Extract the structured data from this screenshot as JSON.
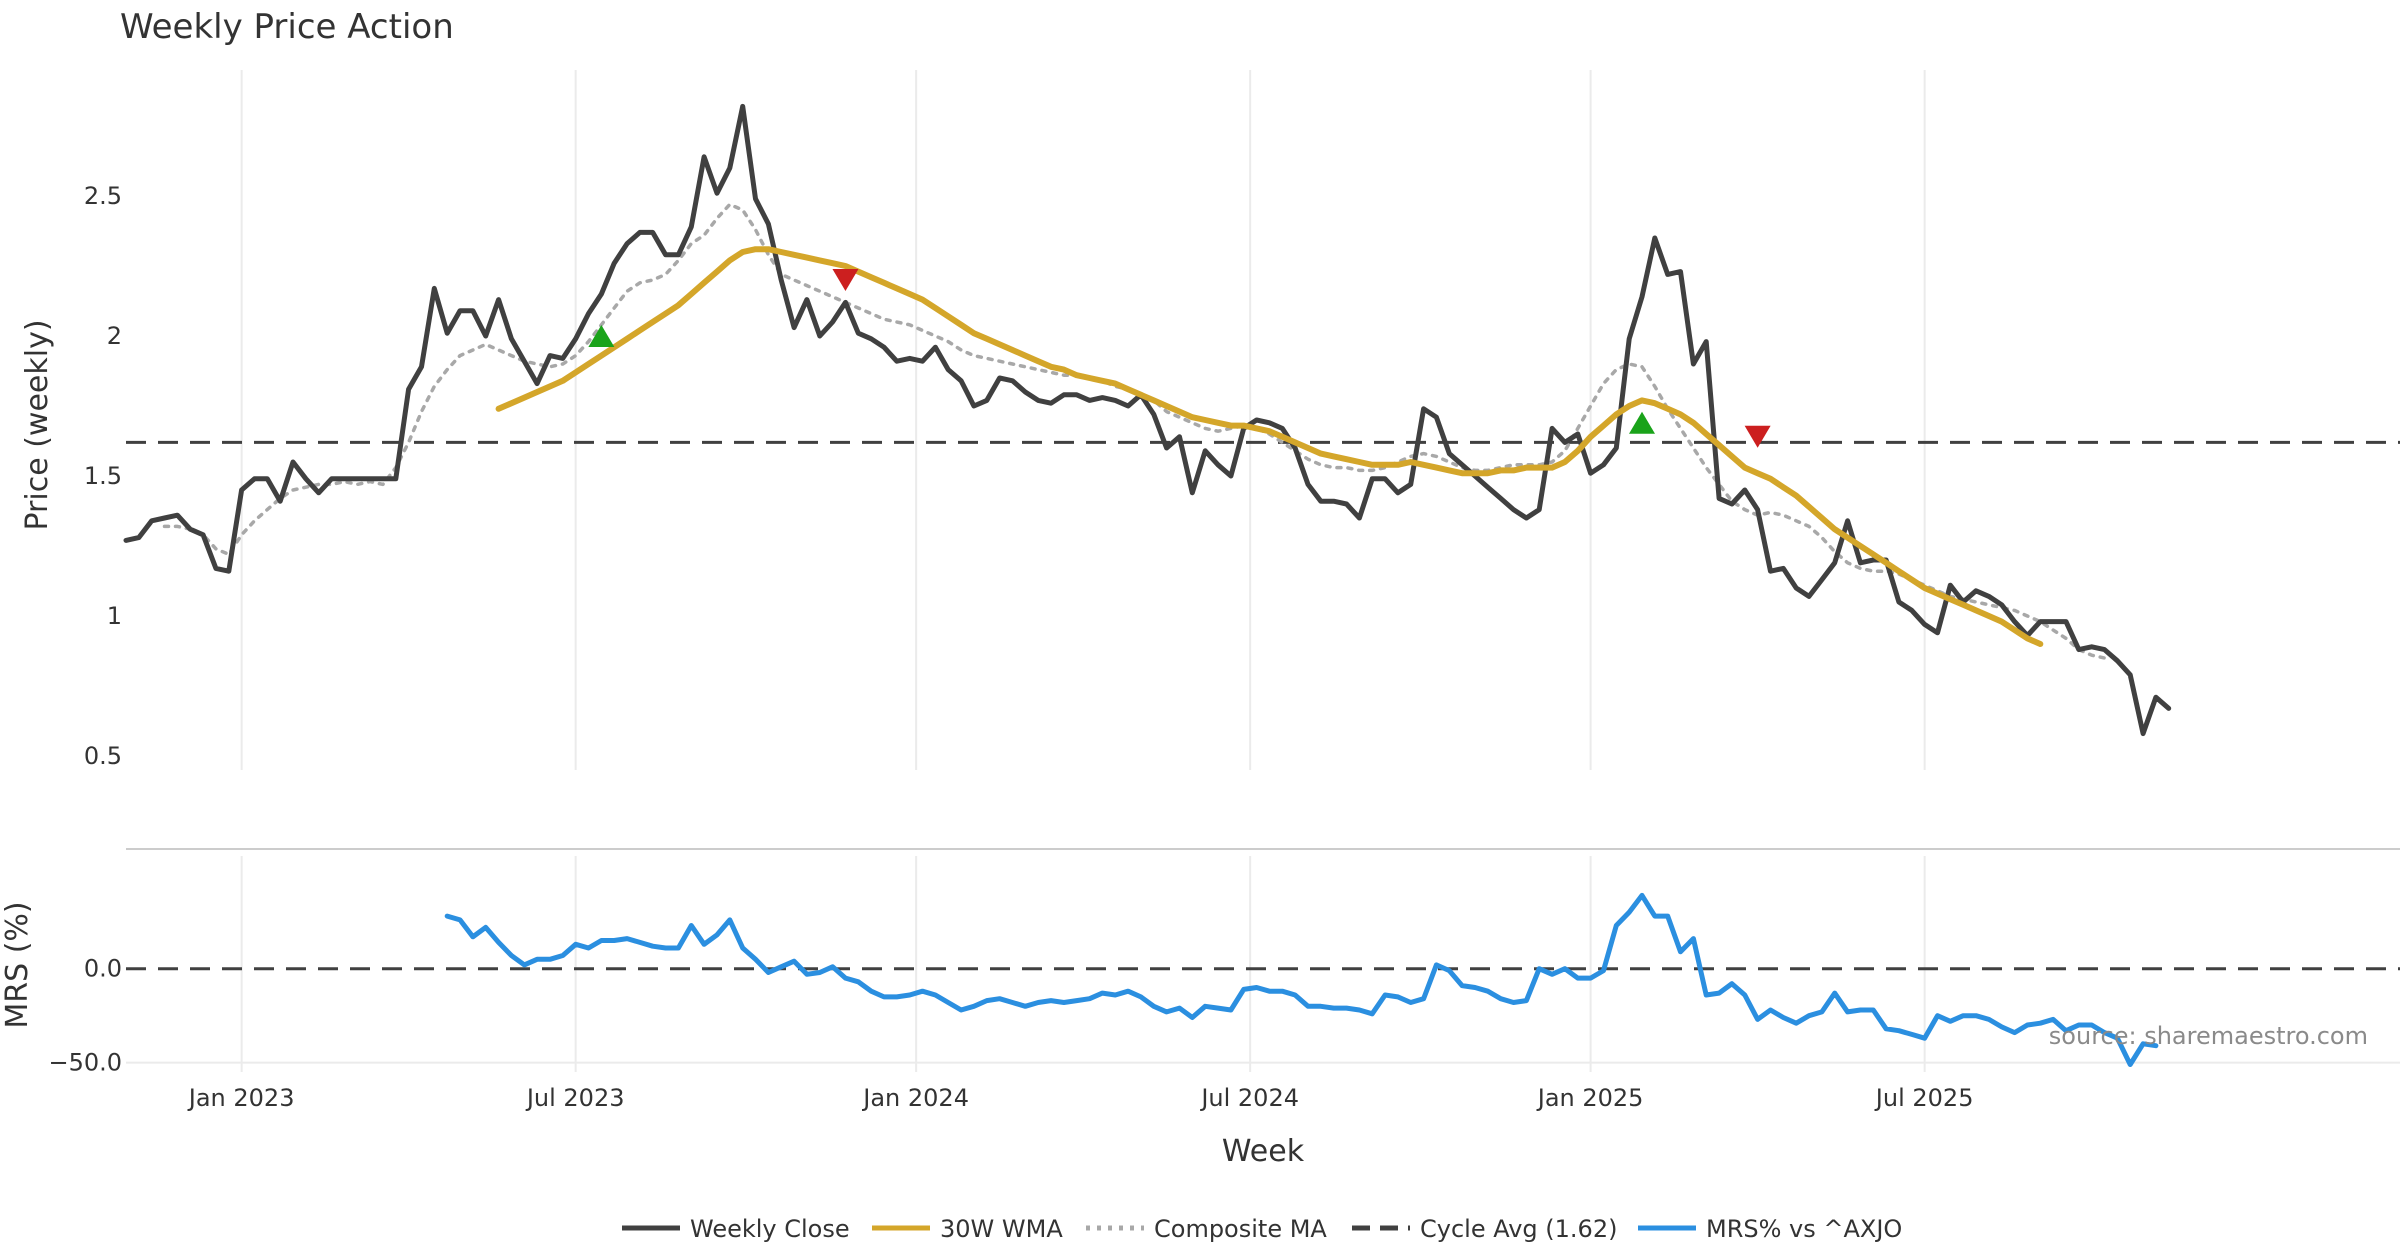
{
  "chart_data": [
    {
      "type": "line",
      "title": "Weekly Price Action",
      "xlabel": "Week",
      "ylabel": "Price (weekly)",
      "ylim": [
        0.45,
        2.95
      ],
      "yticks": [
        {
          "value": 0.5,
          "label": "0.5"
        },
        {
          "value": 1.0,
          "label": "1"
        },
        {
          "value": 1.5,
          "label": "1.5"
        },
        {
          "value": 2.0,
          "label": "2"
        },
        {
          "value": 2.5,
          "label": "2.5"
        }
      ],
      "x_weeks_start": 0,
      "xticks": [
        {
          "week": 9,
          "label": "Jan 2023"
        },
        {
          "week": 35,
          "label": "Jul 2023"
        },
        {
          "week": 61.5,
          "label": "Jan 2024"
        },
        {
          "week": 87.5,
          "label": "Jul 2024"
        },
        {
          "week": 114,
          "label": "Jan 2025"
        },
        {
          "week": 140,
          "label": "Jul 2025"
        }
      ],
      "grid": "vertical",
      "series": [
        {
          "name": "Weekly Close",
          "color": "#404040",
          "style": "solid",
          "x_start": 0,
          "values": [
            1.27,
            1.28,
            1.34,
            1.35,
            1.36,
            1.31,
            1.29,
            1.17,
            1.16,
            1.45,
            1.49,
            1.49,
            1.41,
            1.55,
            1.49,
            1.44,
            1.49,
            1.49,
            1.49,
            1.49,
            1.49,
            1.49,
            1.81,
            1.89,
            2.17,
            2.01,
            2.09,
            2.09,
            2.0,
            2.13,
            1.99,
            1.91,
            1.83,
            1.93,
            1.92,
            1.99,
            2.08,
            2.15,
            2.26,
            2.33,
            2.37,
            2.37,
            2.29,
            2.29,
            2.39,
            2.64,
            2.51,
            2.6,
            2.82,
            2.49,
            2.4,
            2.2,
            2.03,
            2.13,
            2.0,
            2.05,
            2.12,
            2.01,
            1.99,
            1.96,
            1.91,
            1.92,
            1.91,
            1.96,
            1.88,
            1.84,
            1.75,
            1.77,
            1.85,
            1.84,
            1.8,
            1.77,
            1.76,
            1.79,
            1.79,
            1.77,
            1.78,
            1.77,
            1.75,
            1.79,
            1.72,
            1.6,
            1.64,
            1.44,
            1.59,
            1.54,
            1.5,
            1.67,
            1.7,
            1.69,
            1.67,
            1.6,
            1.47,
            1.41,
            1.41,
            1.4,
            1.35,
            1.49,
            1.49,
            1.44,
            1.47,
            1.74,
            1.71,
            1.58,
            1.54,
            1.5,
            1.46,
            1.42,
            1.38,
            1.35,
            1.38,
            1.67,
            1.62,
            1.65,
            1.51,
            1.54,
            1.6,
            1.99,
            2.14,
            2.35,
            2.22,
            2.23,
            1.9,
            1.98,
            1.42,
            1.4,
            1.45,
            1.38,
            1.16,
            1.17,
            1.1,
            1.07,
            1.13,
            1.19,
            1.34,
            1.19,
            1.2,
            1.2,
            1.05,
            1.02,
            0.97,
            0.94,
            1.11,
            1.05,
            1.09,
            1.07,
            1.04,
            0.98,
            0.93,
            0.98,
            0.98,
            0.98,
            0.88,
            0.89,
            0.88,
            0.84,
            0.79,
            0.58,
            0.71,
            0.67
          ]
        },
        {
          "name": "30W WMA",
          "color": "#d4a62a",
          "style": "solid",
          "x_start": 29,
          "values": [
            1.74,
            1.76,
            1.78,
            1.8,
            1.82,
            1.84,
            1.87,
            1.9,
            1.93,
            1.96,
            1.99,
            2.02,
            2.05,
            2.08,
            2.11,
            2.15,
            2.19,
            2.23,
            2.27,
            2.3,
            2.31,
            2.31,
            2.3,
            2.29,
            2.28,
            2.27,
            2.26,
            2.25,
            2.23,
            2.21,
            2.19,
            2.17,
            2.15,
            2.13,
            2.1,
            2.07,
            2.04,
            2.01,
            1.99,
            1.97,
            1.95,
            1.93,
            1.91,
            1.89,
            1.88,
            1.86,
            1.85,
            1.84,
            1.83,
            1.81,
            1.79,
            1.77,
            1.75,
            1.73,
            1.71,
            1.7,
            1.69,
            1.68,
            1.68,
            1.67,
            1.66,
            1.64,
            1.62,
            1.6,
            1.58,
            1.57,
            1.56,
            1.55,
            1.54,
            1.54,
            1.54,
            1.55,
            1.54,
            1.53,
            1.52,
            1.51,
            1.51,
            1.51,
            1.52,
            1.52,
            1.53,
            1.53,
            1.53,
            1.55,
            1.59,
            1.64,
            1.68,
            1.72,
            1.75,
            1.77,
            1.76,
            1.74,
            1.72,
            1.69,
            1.65,
            1.61,
            1.57,
            1.53,
            1.51,
            1.49,
            1.46,
            1.43,
            1.39,
            1.35,
            1.31,
            1.28,
            1.25,
            1.22,
            1.19,
            1.16,
            1.13,
            1.1,
            1.08,
            1.06,
            1.04,
            1.02,
            1.0,
            0.98,
            0.95,
            0.92,
            0.9
          ]
        },
        {
          "name": "Composite MA",
          "color": "#a8a8a8",
          "style": "dotted",
          "x_start": 3,
          "values": [
            1.32,
            1.32,
            1.31,
            1.29,
            1.24,
            1.22,
            1.29,
            1.34,
            1.38,
            1.42,
            1.45,
            1.46,
            1.47,
            1.47,
            1.48,
            1.47,
            1.48,
            1.47,
            1.53,
            1.62,
            1.73,
            1.82,
            1.88,
            1.93,
            1.95,
            1.97,
            1.95,
            1.93,
            1.91,
            1.9,
            1.89,
            1.9,
            1.93,
            1.98,
            2.04,
            2.1,
            2.16,
            2.19,
            2.2,
            2.22,
            2.27,
            2.33,
            2.36,
            2.42,
            2.47,
            2.45,
            2.38,
            2.29,
            2.22,
            2.2,
            2.18,
            2.16,
            2.14,
            2.12,
            2.1,
            2.08,
            2.06,
            2.05,
            2.04,
            2.02,
            2.0,
            1.98,
            1.95,
            1.93,
            1.92,
            1.91,
            1.9,
            1.89,
            1.88,
            1.87,
            1.86,
            1.86,
            1.85,
            1.84,
            1.82,
            1.81,
            1.79,
            1.77,
            1.73,
            1.71,
            1.69,
            1.67,
            1.66,
            1.67,
            1.68,
            1.67,
            1.65,
            1.62,
            1.59,
            1.56,
            1.54,
            1.53,
            1.53,
            1.52,
            1.52,
            1.53,
            1.55,
            1.57,
            1.58,
            1.57,
            1.55,
            1.53,
            1.52,
            1.52,
            1.53,
            1.54,
            1.54,
            1.54,
            1.55,
            1.59,
            1.67,
            1.75,
            1.83,
            1.88,
            1.9,
            1.89,
            1.82,
            1.74,
            1.67,
            1.6,
            1.53,
            1.47,
            1.41,
            1.38,
            1.36,
            1.37,
            1.36,
            1.34,
            1.32,
            1.28,
            1.23,
            1.19,
            1.17,
            1.16,
            1.16,
            1.15,
            1.13,
            1.11,
            1.09,
            1.07,
            1.06,
            1.05,
            1.04,
            1.03,
            1.02,
            1.0,
            0.98,
            0.95,
            0.92,
            0.88,
            0.86,
            0.85
          ]
        },
        {
          "name": "Cycle Avg (1.62)",
          "color": "#404040",
          "style": "dashed",
          "constant": 1.62
        }
      ],
      "markers": [
        {
          "type": "buy",
          "week": 37,
          "value": 2.0,
          "color": "#1aa31a"
        },
        {
          "type": "sell",
          "week": 56,
          "value": 2.2,
          "color": "#cc1f1f"
        },
        {
          "type": "buy",
          "week": 118,
          "value": 1.69,
          "color": "#1aa31a"
        },
        {
          "type": "sell",
          "week": 127,
          "value": 1.64,
          "color": "#cc1f1f"
        }
      ]
    },
    {
      "type": "line",
      "xlabel": "",
      "ylabel": "MRS (%)",
      "ylim": [
        -55,
        60
      ],
      "yticks": [
        {
          "value": 0,
          "label": "0.0"
        },
        {
          "value": -50,
          "label": "−50.0"
        }
      ],
      "series": [
        {
          "name": "MRS% vs ^AXJO",
          "color": "#2b8fe0",
          "style": "solid",
          "x_start": 25,
          "values": [
            28,
            26,
            17,
            22,
            14,
            7,
            2,
            5,
            5,
            7,
            13,
            11,
            15,
            15,
            16,
            14,
            12,
            11,
            11,
            23,
            13,
            18,
            26,
            11,
            5,
            -2,
            1,
            4,
            -3,
            -2,
            1,
            -5,
            -7,
            -12,
            -15,
            -15,
            -14,
            -12,
            -14,
            -18,
            -22,
            -20,
            -17,
            -16,
            -18,
            -20,
            -18,
            -17,
            -18,
            -17,
            -16,
            -13,
            -14,
            -12,
            -15,
            -20,
            -23,
            -21,
            -26,
            -20,
            -21,
            -22,
            -11,
            -10,
            -12,
            -12,
            -14,
            -20,
            -20,
            -21,
            -21,
            -22,
            -24,
            -14,
            -15,
            -18,
            -16,
            2,
            -1,
            -9,
            -10,
            -12,
            -16,
            -18,
            -17,
            0,
            -3,
            0,
            -5,
            -5,
            -1,
            23,
            30,
            39,
            28,
            28,
            9,
            16,
            -14,
            -13,
            -8,
            -14,
            -27,
            -22,
            -26,
            -29,
            -25,
            -23,
            -13,
            -23,
            -22,
            -22,
            -32,
            -33,
            -35,
            -37,
            -25,
            -28,
            -25,
            -25,
            -27,
            -31,
            -34,
            -30,
            -29,
            -27,
            -33,
            -30,
            -30,
            -34,
            -37,
            -51,
            -40,
            -41
          ]
        },
        {
          "name": "zero",
          "color": "#404040",
          "style": "dashed",
          "constant": 0
        }
      ],
      "source_note": "source: sharemaestro.com"
    }
  ],
  "legend": [
    {
      "label": "Weekly Close",
      "color": "#404040",
      "style": "solid"
    },
    {
      "label": "30W WMA",
      "color": "#d4a62a",
      "style": "solid"
    },
    {
      "label": "Composite MA",
      "color": "#a8a8a8",
      "style": "dotted"
    },
    {
      "label": "Cycle Avg (1.62)",
      "color": "#404040",
      "style": "dashed"
    },
    {
      "label": "MRS% vs ^AXJO",
      "color": "#2b8fe0",
      "style": "solid"
    }
  ]
}
